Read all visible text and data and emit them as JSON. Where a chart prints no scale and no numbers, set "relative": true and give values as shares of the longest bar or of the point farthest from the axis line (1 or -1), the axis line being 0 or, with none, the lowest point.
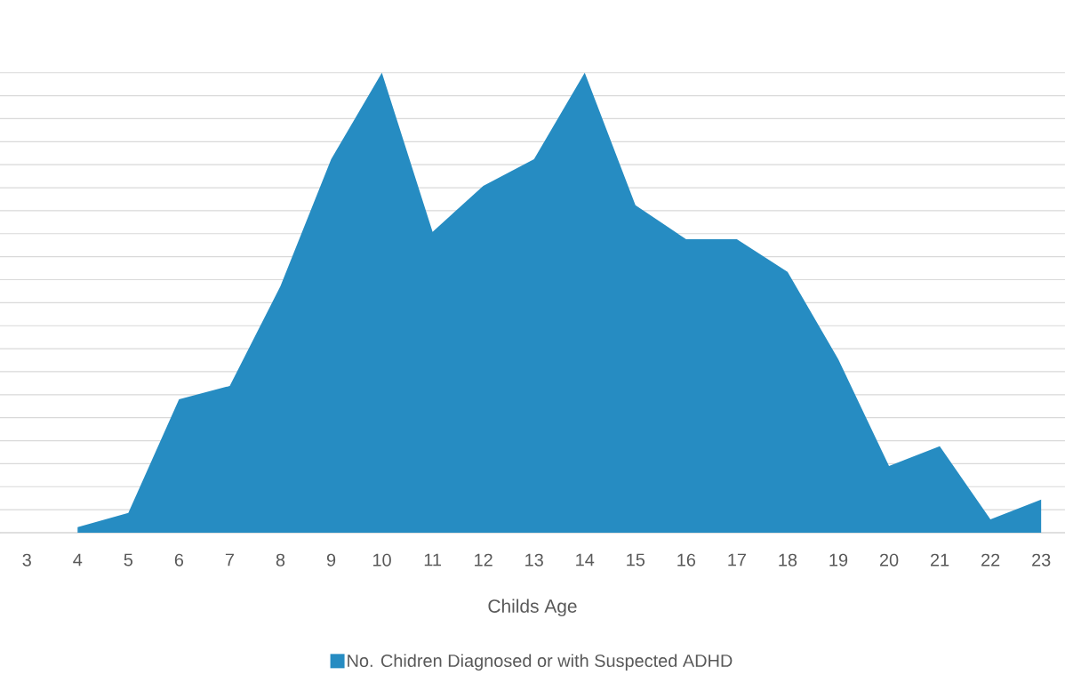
{
  "chart_data": {
    "type": "area",
    "relative": true,
    "xlabel": "Childs Age",
    "categories": [
      "3",
      "4",
      "5",
      "6",
      "7",
      "8",
      "9",
      "10",
      "11",
      "12",
      "13",
      "14",
      "15",
      "16",
      "17",
      "18",
      "19",
      "20",
      "21",
      "22",
      "23"
    ],
    "series": [
      {
        "name": "No. Chidren Diagnosed or with Suspected ADHD",
        "color": "#268cc2",
        "values": [
          null,
          0.012,
          0.043,
          0.29,
          0.319,
          0.536,
          0.812,
          1,
          0.654,
          0.754,
          0.812,
          1,
          0.712,
          0.638,
          0.638,
          0.567,
          0.377,
          0.145,
          0.188,
          0.029,
          0.072
        ]
      }
    ],
    "grid": "y",
    "legend": "bottom"
  }
}
